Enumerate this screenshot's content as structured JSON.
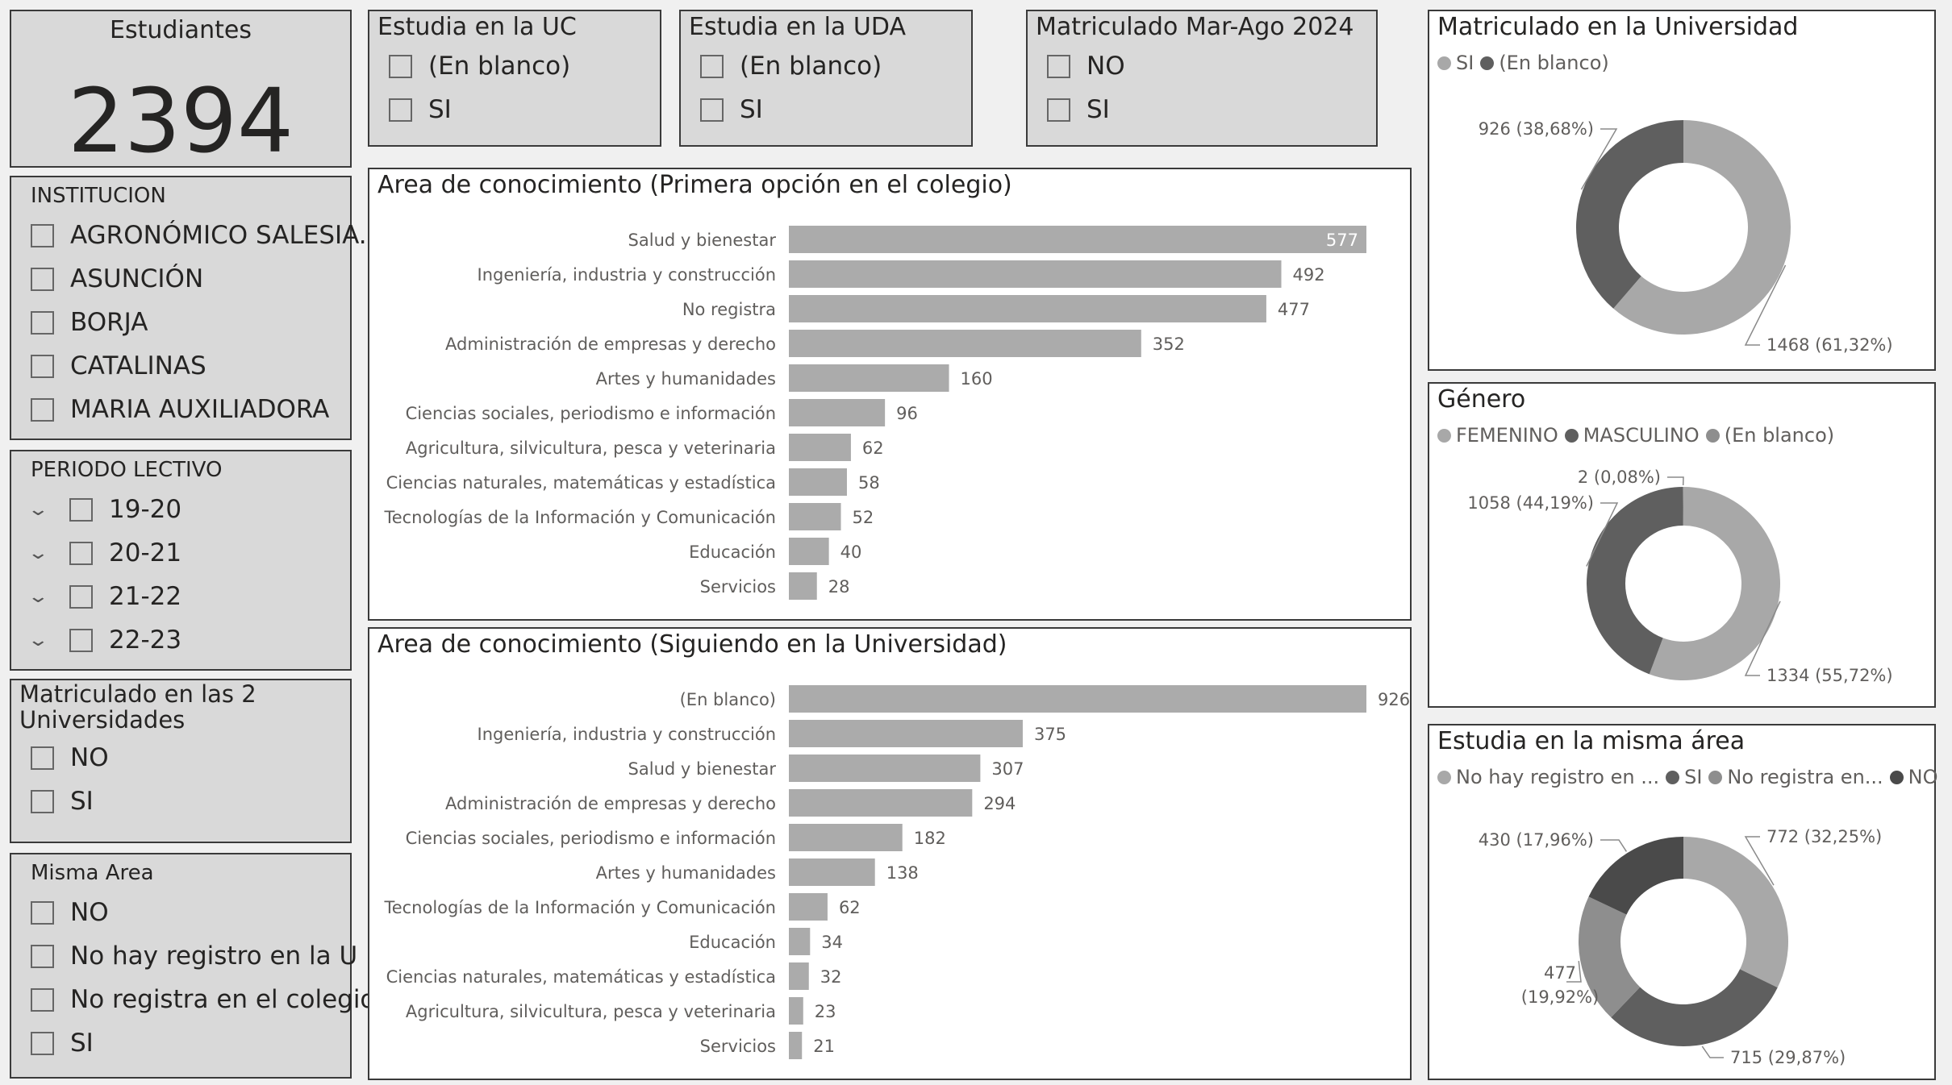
{
  "colors": {
    "light": "#a8a8a8",
    "dark": "#5f5f5f",
    "mid": "#8e8e8e",
    "bar": "#ababab"
  },
  "kpi": {
    "title": "Estudiantes",
    "value": "2394"
  },
  "slicers": {
    "uc": {
      "title": "Estudia en la UC",
      "items": [
        "(En blanco)",
        "SI"
      ]
    },
    "uda": {
      "title": "Estudia en la UDA",
      "items": [
        "(En blanco)",
        "SI"
      ]
    },
    "mar": {
      "title": "Matriculado Mar-Ago 2024",
      "items": [
        "NO",
        "SI"
      ]
    },
    "inst": {
      "title": "INSTITUCION",
      "items": [
        "AGRONÓMICO SALESIA...",
        "ASUNCIÓN",
        "BORJA",
        "CATALINAS",
        "MARIA AUXILIADORA"
      ]
    },
    "periodo": {
      "title": "PERIODO LECTIVO",
      "items": [
        "19-20",
        "20-21",
        "21-22",
        "22-23"
      ]
    },
    "mat2": {
      "title_line1": "Matriculado en las 2",
      "title_line2": "Universidades",
      "items": [
        "NO",
        "SI"
      ]
    },
    "misma": {
      "title": "Misma Area",
      "items": [
        "NO",
        "No hay registro en la U",
        "No registra en el colegio",
        "SI"
      ]
    }
  },
  "chart_data": [
    {
      "type": "bar",
      "orientation": "horizontal",
      "title": "Area de conocimiento (Primera opción en el colegio)",
      "categories": [
        "Salud y bienestar",
        "Ingeniería, industria y construcción",
        "No registra",
        "Administración de empresas y derecho",
        "Artes y humanidades",
        "Ciencias sociales, periodismo e información",
        "Agricultura, silvicultura, pesca y veterinaria",
        "Ciencias naturales, matemáticas y estadística",
        "Tecnologías de la Información y Comunicación",
        "Educación",
        "Servicios"
      ],
      "values": [
        577,
        492,
        477,
        352,
        160,
        96,
        62,
        58,
        52,
        40,
        28
      ]
    },
    {
      "type": "bar",
      "orientation": "horizontal",
      "title": "Area de conocimiento (Siguiendo en la Universidad)",
      "categories": [
        "(En blanco)",
        "Ingeniería, industria y construcción",
        "Salud y bienestar",
        "Administración de empresas y derecho",
        "Ciencias sociales, periodismo e información",
        "Artes y humanidades",
        "Tecnologías de la Información y Comunicación",
        "Educación",
        "Ciencias naturales, matemáticas y estadística",
        "Agricultura, silvicultura, pesca y veterinaria",
        "Servicios"
      ],
      "values": [
        926,
        375,
        307,
        294,
        182,
        138,
        62,
        34,
        32,
        23,
        21
      ]
    },
    {
      "type": "pie",
      "donut": true,
      "title": "Matriculado en la Universidad",
      "legend": [
        "SI",
        "(En blanco)"
      ],
      "slices": [
        {
          "name": "SI",
          "value": 1468,
          "label": "1468 (61,32%)",
          "color": "#a8a8a8"
        },
        {
          "name": "(En blanco)",
          "value": 926,
          "label": "926 (38,68%)",
          "color": "#5f5f5f"
        }
      ]
    },
    {
      "type": "pie",
      "donut": true,
      "title": "Género",
      "legend": [
        "FEMENINO",
        "MASCULINO",
        "(En blanco)"
      ],
      "slices": [
        {
          "name": "FEMENINO",
          "value": 1334,
          "label": "1334 (55,72%)",
          "color": "#a8a8a8"
        },
        {
          "name": "MASCULINO",
          "value": 1058,
          "label": "1058 (44,19%)",
          "color": "#5f5f5f"
        },
        {
          "name": "(En blanco)",
          "value": 2,
          "label": "2 (0,08%)",
          "color": "#8e8e8e"
        }
      ]
    },
    {
      "type": "pie",
      "donut": true,
      "title": "Estudia en la misma área",
      "legend": [
        "No hay registro en ...",
        "SI",
        "No registra en...",
        "NO"
      ],
      "slices": [
        {
          "name": "No hay registro en ...",
          "value": 772,
          "label": "772 (32,25%)",
          "color": "#a8a8a8"
        },
        {
          "name": "SI",
          "value": 715,
          "label": "715 (29,87%)",
          "color": "#5f5f5f"
        },
        {
          "name": "No registra en...",
          "value": 477,
          "label_line1": "477",
          "label_line2": "(19,92%)",
          "color": "#8e8e8e"
        },
        {
          "name": "NO",
          "value": 430,
          "label": "430 (17,96%)",
          "color": "#4a4a4a"
        }
      ]
    }
  ]
}
